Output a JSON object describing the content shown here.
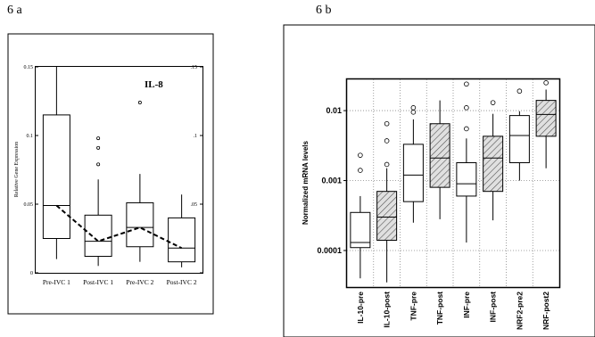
{
  "panels": {
    "a_label": "6 a",
    "b_label": "6 b"
  },
  "chart_data": [
    {
      "type": "box",
      "title": "IL-8",
      "ylabel": "Relative Gene Expression",
      "xlabel": "",
      "ylim": [
        0,
        0.15
      ],
      "yticks": [
        "0",
        "0.05",
        "0.1",
        "0.15"
      ],
      "grid": false,
      "categories": [
        "Pre-IVC 1",
        "Post-IVC 1",
        "Pre-IVC 2",
        "Post-IVC 2"
      ],
      "boxes": [
        {
          "whisker_low": 0.01,
          "q1": 0.025,
          "median": 0.049,
          "q3": 0.115,
          "whisker_high": 0.15,
          "outliers": []
        },
        {
          "whisker_low": 0.005,
          "q1": 0.012,
          "median": 0.023,
          "q3": 0.042,
          "whisker_high": 0.068,
          "outliers": [
            0.098,
            0.091,
            0.079
          ]
        },
        {
          "whisker_low": 0.008,
          "q1": 0.019,
          "median": 0.033,
          "q3": 0.051,
          "whisker_high": 0.072,
          "outliers": [
            0.124
          ]
        },
        {
          "whisker_low": 0.004,
          "q1": 0.008,
          "median": 0.018,
          "q3": 0.04,
          "whisker_high": 0.057,
          "outliers": []
        }
      ],
      "mean_line": [
        0.049,
        0.023,
        0.033,
        0.018
      ]
    },
    {
      "type": "box",
      "title": "",
      "ylabel": "Normalized mRNA levels",
      "xlabel": "",
      "yscale": "log",
      "ylim": [
        3e-05,
        0.028
      ],
      "yticks": [
        "0.0001",
        "0.001",
        "0.01"
      ],
      "grid": true,
      "categories": [
        "IL-10-pre",
        "IL-10-post",
        "TNF-pre",
        "TNF-post",
        "INF-pre",
        "INF-post",
        "NRF2-pre2",
        "NRF-post2"
      ],
      "hatched": [
        false,
        true,
        false,
        true,
        false,
        true,
        false,
        true
      ],
      "boxes": [
        {
          "whisker_low": 4e-05,
          "q1": 0.00011,
          "median": 0.00013,
          "q3": 0.00035,
          "whisker_high": 0.0006,
          "outliers": [
            0.0023,
            0.0014
          ]
        },
        {
          "whisker_low": 3.5e-05,
          "q1": 0.00014,
          "median": 0.0003,
          "q3": 0.0007,
          "whisker_high": 0.0015,
          "outliers": [
            0.0065,
            0.0037,
            0.0017
          ]
        },
        {
          "whisker_low": 0.00025,
          "q1": 0.0005,
          "median": 0.0012,
          "q3": 0.0033,
          "whisker_high": 0.0075,
          "outliers": [
            0.011,
            0.0095
          ]
        },
        {
          "whisker_low": 0.00028,
          "q1": 0.0008,
          "median": 0.0021,
          "q3": 0.0065,
          "whisker_high": 0.014,
          "outliers": []
        },
        {
          "whisker_low": 0.00013,
          "q1": 0.0006,
          "median": 0.0009,
          "q3": 0.0018,
          "whisker_high": 0.004,
          "outliers": [
            0.024,
            0.011,
            0.0055
          ]
        },
        {
          "whisker_low": 0.00027,
          "q1": 0.0007,
          "median": 0.0021,
          "q3": 0.0043,
          "whisker_high": 0.009,
          "outliers": [
            0.013
          ]
        },
        {
          "whisker_low": 0.001,
          "q1": 0.0018,
          "median": 0.0044,
          "q3": 0.0085,
          "whisker_high": 0.0098,
          "outliers": [
            0.019
          ]
        },
        {
          "whisker_low": 0.0015,
          "q1": 0.0043,
          "median": 0.0088,
          "q3": 0.014,
          "whisker_high": 0.02,
          "outliers": [
            0.025
          ]
        }
      ]
    }
  ]
}
